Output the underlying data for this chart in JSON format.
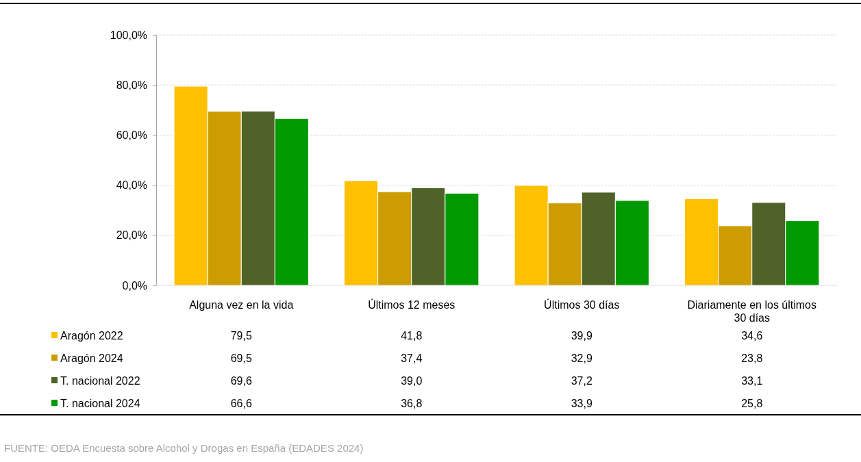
{
  "chart_data": {
    "type": "bar",
    "categories": [
      "Alguna vez en la vida",
      "Últimos 12 meses",
      "Últimos 30 días",
      "Diariamente en los últimos 30 días"
    ],
    "series": [
      {
        "name": "Aragón 2022",
        "color": "#ffc000",
        "values": [
          79.5,
          41.8,
          39.9,
          34.6
        ],
        "value_labels": [
          "79,5",
          "41,8",
          "39,9",
          "34,6"
        ]
      },
      {
        "name": "Aragón 2024",
        "color": "#cc9c00",
        "values": [
          69.5,
          37.4,
          32.9,
          23.8
        ],
        "value_labels": [
          "69,5",
          "37,4",
          "32,9",
          "23,8"
        ]
      },
      {
        "name": "T. nacional 2022",
        "color": "#4f6228",
        "values": [
          69.6,
          39.0,
          37.2,
          33.1
        ],
        "value_labels": [
          "69,6",
          "39,0",
          "37,2",
          "33,1"
        ]
      },
      {
        "name": "T. nacional 2024",
        "color": "#009900",
        "values": [
          66.6,
          36.8,
          33.9,
          25.8
        ],
        "value_labels": [
          "66,6",
          "36,8",
          "33,9",
          "25,8"
        ]
      }
    ],
    "ylim": [
      0,
      100
    ],
    "yticks": [
      {
        "value": 0,
        "label": "0,0%"
      },
      {
        "value": 20,
        "label": "20,0%"
      },
      {
        "value": 40,
        "label": "40,0%"
      },
      {
        "value": 60,
        "label": "60,0%"
      },
      {
        "value": 80,
        "label": "80,0%"
      },
      {
        "value": 100,
        "label": "100,0%"
      }
    ],
    "grid": "y",
    "legend": "bottom left",
    "annotations": [
      "FUENTE: OEDA Encuesta sobre Alcohol y Drogas en España (EDADES 2024)"
    ]
  }
}
